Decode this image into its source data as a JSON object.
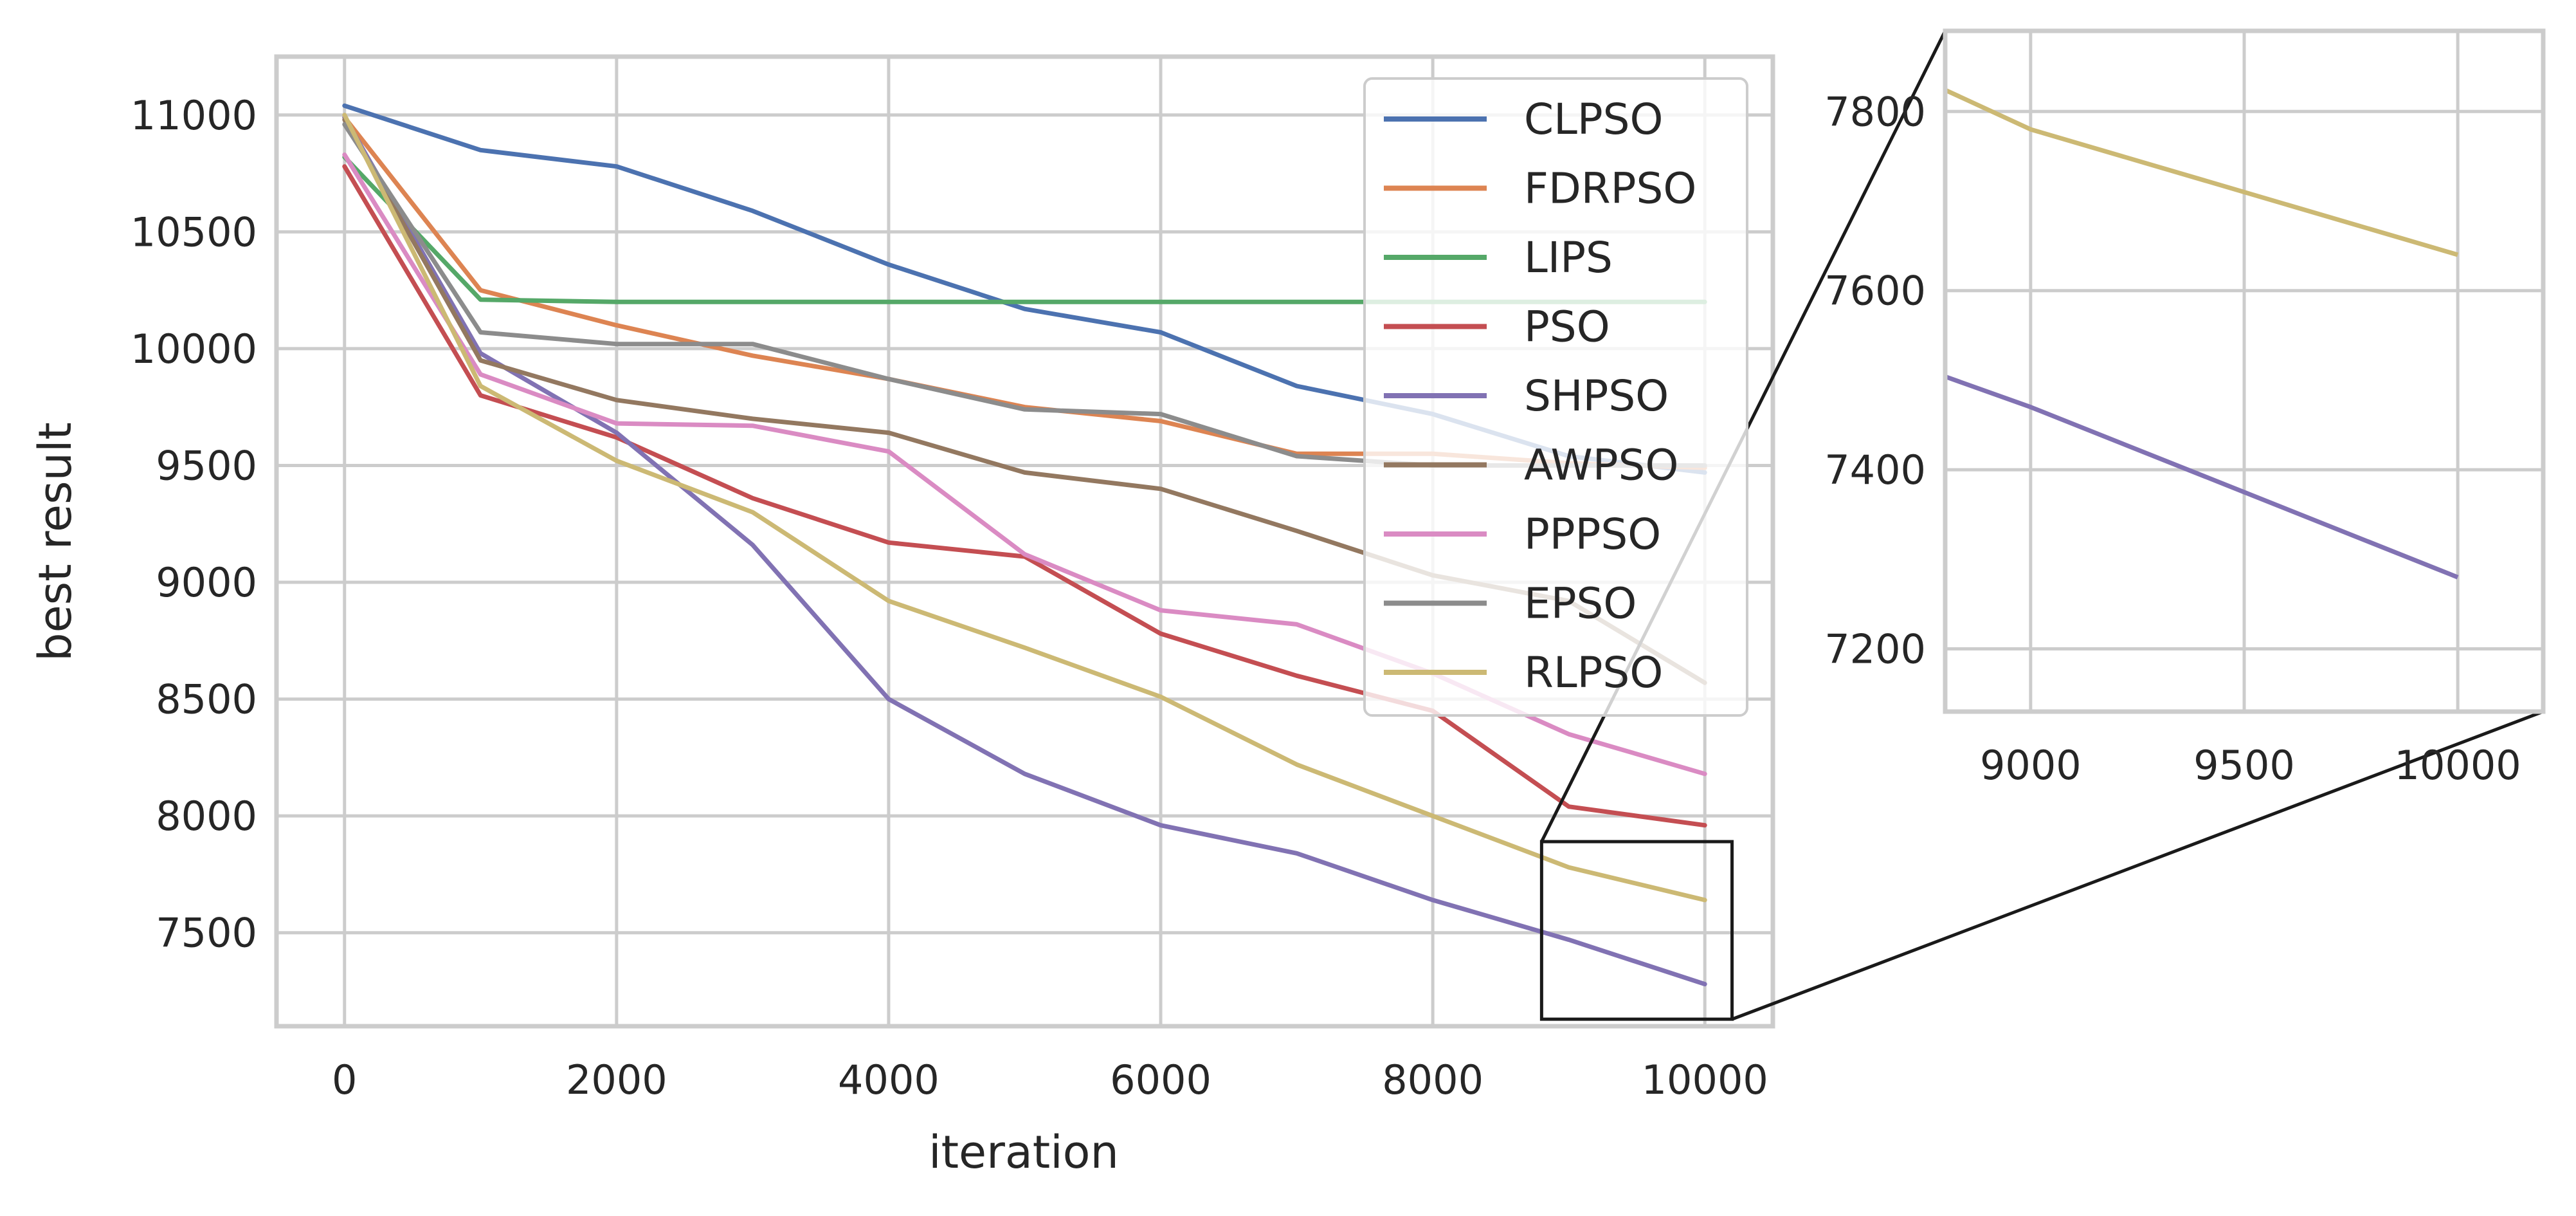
{
  "chart_data": {
    "type": "line",
    "title": "",
    "xlabel": "iteration",
    "ylabel": "best result",
    "xlim": [
      -500,
      10500
    ],
    "ylim": [
      7100,
      11250
    ],
    "xticks": [
      0,
      2000,
      4000,
      6000,
      8000,
      10000
    ],
    "yticks": [
      7500,
      8000,
      8500,
      9000,
      9500,
      10000,
      10500,
      11000
    ],
    "grid": true,
    "legend_position": "top-right",
    "x": [
      0,
      1000,
      2000,
      3000,
      4000,
      5000,
      6000,
      7000,
      8000,
      9000,
      10000
    ],
    "series": [
      {
        "name": "CLPSO",
        "color": "#4c72b0",
        "values": [
          11040,
          10850,
          10780,
          10590,
          10360,
          10170,
          10070,
          9840,
          9720,
          9540,
          9470
        ]
      },
      {
        "name": "FDRPSO",
        "color": "#dd8452",
        "values": [
          10990,
          10250,
          10100,
          9970,
          9870,
          9750,
          9690,
          9550,
          9550,
          9510,
          9490
        ]
      },
      {
        "name": "LIPS",
        "color": "#55a868",
        "values": [
          10820,
          10210,
          10200,
          10200,
          10200,
          10200,
          10200,
          10200,
          10200,
          10200,
          10200
        ]
      },
      {
        "name": "PSO",
        "color": "#c44e52",
        "values": [
          10780,
          9800,
          9620,
          9360,
          9170,
          9110,
          8780,
          8600,
          8450,
          8040,
          7960
        ]
      },
      {
        "name": "SHPSO",
        "color": "#8172b3",
        "values": [
          10990,
          9980,
          9640,
          9160,
          8500,
          8180,
          7960,
          7840,
          7640,
          7470,
          7280
        ]
      },
      {
        "name": "AWPSO",
        "color": "#937860",
        "values": [
          10980,
          9950,
          9780,
          9700,
          9640,
          9470,
          9400,
          9220,
          9030,
          8920,
          8570
        ]
      },
      {
        "name": "PPPSO",
        "color": "#da8bc3",
        "values": [
          10830,
          9890,
          9680,
          9670,
          9560,
          9120,
          8880,
          8820,
          8610,
          8350,
          8180
        ]
      },
      {
        "name": "EPSO",
        "color": "#8c8c8c",
        "values": [
          10960,
          10070,
          10020,
          10020,
          9870,
          9740,
          9720,
          9540,
          9500,
          9500,
          9500
        ]
      },
      {
        "name": "RLPSO",
        "color": "#ccb974",
        "values": [
          11000,
          9840,
          9520,
          9300,
          8920,
          8720,
          8510,
          8220,
          8000,
          7780,
          7640
        ]
      }
    ],
    "inset": {
      "xlim": [
        8800,
        10200
      ],
      "ylim": [
        7130,
        7890
      ],
      "xticks": [
        9000,
        9500,
        10000
      ],
      "yticks": [
        7200,
        7400,
        7600,
        7800
      ],
      "series_shown": [
        "SHPSO",
        "RLPSO"
      ]
    }
  }
}
